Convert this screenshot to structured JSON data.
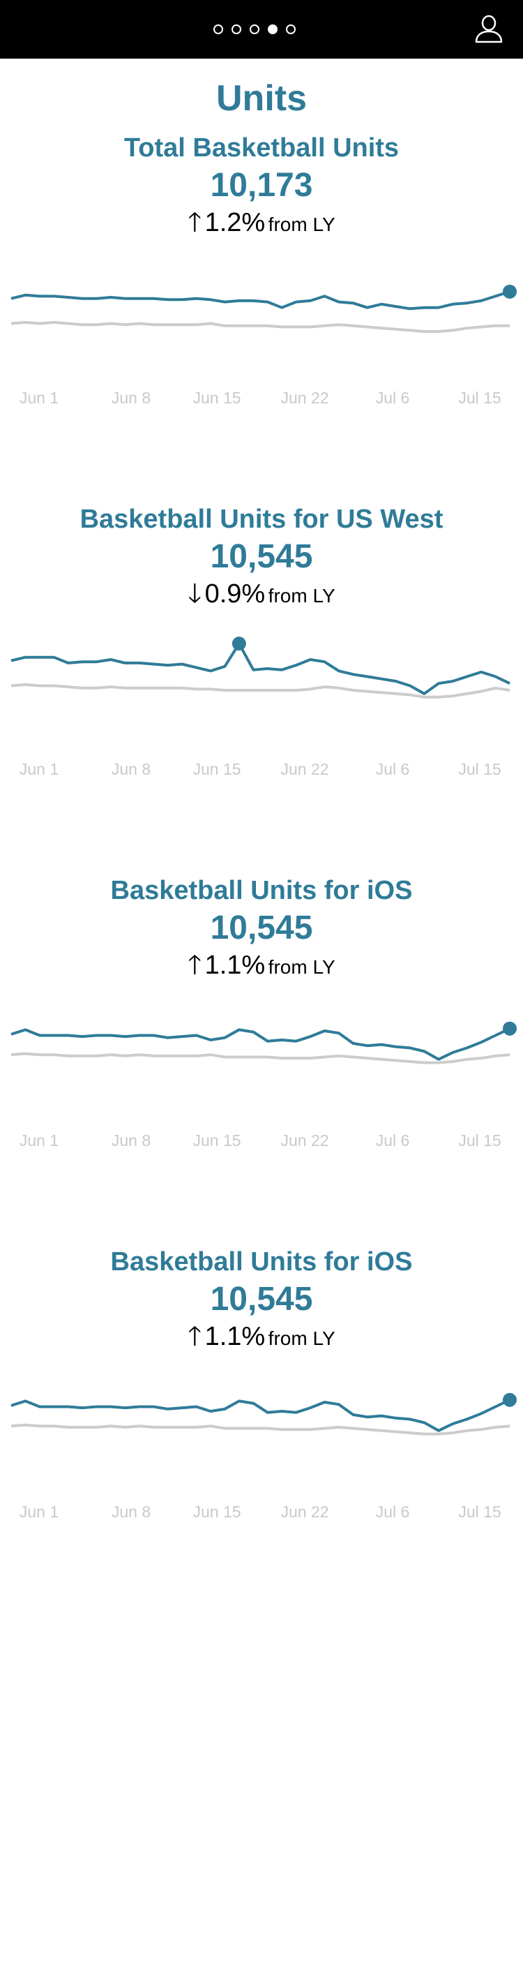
{
  "header": {
    "pages": 5,
    "active_page": 4,
    "user_icon": "user-icon"
  },
  "page_title": "Units",
  "panels": [
    {
      "title": "Total Basketball Units",
      "value": "10,173",
      "direction": "up",
      "arrow": "🡑",
      "change": "1.2%",
      "suffix": "from LY"
    },
    {
      "title": "Basketball Units for US West",
      "value": "10,545",
      "direction": "down",
      "arrow": "🡓",
      "change": "0.9%",
      "suffix": "from LY"
    },
    {
      "title": "Basketball Units for iOS",
      "value": "10,545",
      "direction": "up",
      "arrow": "🡑",
      "change": "1.1%",
      "suffix": "from LY"
    },
    {
      "title": "Basketball Units for iOS",
      "value": "10,545",
      "direction": "up",
      "arrow": "🡑",
      "change": "1.1%",
      "suffix": "from LY"
    }
  ],
  "colors": {
    "accent": "#2f7b98",
    "last_year": "#cccccc",
    "tick": "#c9c9c9",
    "header_bg": "#000000"
  },
  "chart_data": [
    {
      "type": "line",
      "x_ticks": [
        "Jun 1",
        "Jun 8",
        "Jun 15",
        "Jun 22",
        "Jul 6",
        "Jul 15"
      ],
      "series": [
        {
          "values": [
            52,
            55,
            54,
            54,
            53,
            52,
            52,
            53,
            52,
            52,
            52,
            51,
            51,
            52,
            51,
            49,
            50,
            50,
            49,
            44,
            49,
            50,
            54,
            49,
            48,
            44,
            47,
            45,
            43,
            44,
            44,
            47,
            48,
            50,
            54,
            58
          ],
          "highlight": "last"
        },
        {
          "values": [
            30,
            31,
            30,
            31,
            30,
            29,
            29,
            30,
            29,
            30,
            29,
            29,
            29,
            29,
            30,
            28,
            28,
            28,
            28,
            27,
            27,
            27,
            28,
            29,
            28,
            27,
            26,
            25,
            24,
            23,
            23,
            24,
            26,
            27,
            28,
            28
          ]
        }
      ]
    },
    {
      "type": "line",
      "x_ticks": [
        "Jun 1",
        "Jun 8",
        "Jun 15",
        "Jun 22",
        "Jul 6",
        "Jul 15"
      ],
      "series": [
        {
          "values": [
            60,
            63,
            63,
            63,
            58,
            59,
            59,
            61,
            58,
            58,
            57,
            56,
            57,
            54,
            51,
            55,
            75,
            52,
            53,
            52,
            56,
            61,
            59,
            51,
            48,
            46,
            44,
            42,
            38,
            31,
            40,
            42,
            46,
            50,
            46,
            40
          ],
          "highlight": "max"
        },
        {
          "values": [
            38,
            39,
            38,
            38,
            37,
            36,
            36,
            37,
            36,
            36,
            36,
            36,
            36,
            35,
            35,
            34,
            34,
            34,
            34,
            34,
            34,
            35,
            37,
            36,
            34,
            33,
            32,
            31,
            30,
            28,
            28,
            29,
            31,
            33,
            36,
            34
          ]
        }
      ]
    },
    {
      "type": "line",
      "x_ticks": [
        "Jun 1",
        "Jun 8",
        "Jun 15",
        "Jun 22",
        "Jul 6",
        "Jul 15"
      ],
      "series": [
        {
          "values": [
            58,
            62,
            57,
            57,
            57,
            56,
            57,
            57,
            56,
            57,
            57,
            55,
            56,
            57,
            53,
            55,
            62,
            60,
            52,
            53,
            52,
            56,
            61,
            59,
            50,
            48,
            49,
            47,
            46,
            43,
            36,
            42,
            46,
            51,
            57,
            63
          ],
          "highlight": "last"
        },
        {
          "values": [
            40,
            41,
            40,
            40,
            39,
            39,
            39,
            40,
            39,
            40,
            39,
            39,
            39,
            39,
            40,
            38,
            38,
            38,
            38,
            37,
            37,
            37,
            38,
            39,
            38,
            37,
            36,
            35,
            34,
            33,
            33,
            34,
            36,
            37,
            39,
            40
          ]
        }
      ]
    },
    {
      "type": "line",
      "x_ticks": [
        "Jun 1",
        "Jun 8",
        "Jun 15",
        "Jun 22",
        "Jul 6",
        "Jul 15"
      ],
      "series": [
        {
          "values": [
            58,
            62,
            57,
            57,
            57,
            56,
            57,
            57,
            56,
            57,
            57,
            55,
            56,
            57,
            53,
            55,
            62,
            60,
            52,
            53,
            52,
            56,
            61,
            59,
            50,
            48,
            49,
            47,
            46,
            43,
            36,
            42,
            46,
            51,
            57,
            63
          ],
          "highlight": "last"
        },
        {
          "values": [
            40,
            41,
            40,
            40,
            39,
            39,
            39,
            40,
            39,
            40,
            39,
            39,
            39,
            39,
            40,
            38,
            38,
            38,
            38,
            37,
            37,
            37,
            38,
            39,
            38,
            37,
            36,
            35,
            34,
            33,
            33,
            34,
            36,
            37,
            39,
            40
          ]
        }
      ]
    }
  ]
}
